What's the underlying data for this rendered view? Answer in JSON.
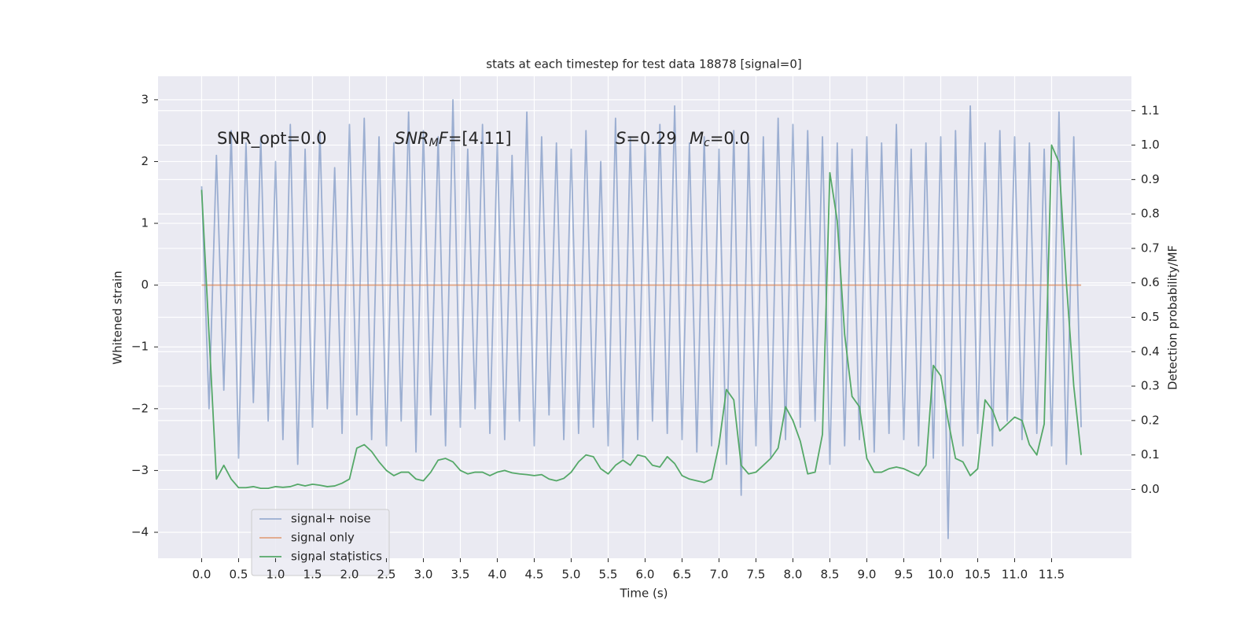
{
  "chart_data": {
    "type": "line",
    "title": "stats at each timestep for test data 18878 [signal=0]",
    "xlabel": "Time (s)",
    "ylabel": "Whitened strain",
    "y2label": "Detection probability/MF",
    "annotations": [
      [
        "SNR_opt=0.0"
      ],
      [
        "SNR",
        "M",
        "F",
        "=[4.11]"
      ],
      [
        "S",
        "=0.29"
      ],
      [
        "M",
        "c",
        "=0.0"
      ]
    ],
    "xlim": [
      -0.59,
      12.58
    ],
    "xticks": [
      {
        "value": 0,
        "label": "0.0"
      },
      0.5,
      {
        "value": 1,
        "label": "1.0"
      },
      1.5,
      {
        "value": 2,
        "label": "2.0"
      },
      2.5,
      {
        "value": 3,
        "label": "3.0"
      },
      3.5,
      {
        "value": 4,
        "label": "4.0"
      },
      4.5,
      {
        "value": 5,
        "label": "5.0"
      },
      5.5,
      {
        "value": 6,
        "label": "6.0"
      },
      6.5,
      {
        "value": 7,
        "label": "7.0"
      },
      7.5,
      {
        "value": 8,
        "label": "8.0"
      },
      8.5,
      {
        "value": 9,
        "label": "9.0"
      },
      9.5,
      {
        "value": 10,
        "label": "10.0"
      },
      10.5,
      {
        "value": 11,
        "label": "11.0"
      },
      11.5
    ],
    "ylim": [
      -4.42,
      3.38
    ],
    "yticks": [
      {
        "value": -4,
        "label": "−4"
      },
      {
        "value": -3,
        "label": "−3"
      },
      {
        "value": -2,
        "label": "−2"
      },
      {
        "value": -1,
        "label": "−1"
      },
      0,
      1,
      2,
      3
    ],
    "y2lim": [
      -0.2,
      1.2
    ],
    "y2ticks": [
      {
        "value": 0,
        "label": "0.0"
      },
      0.1,
      0.2,
      0.3,
      0.4,
      0.5,
      0.6,
      0.7,
      0.8,
      0.9,
      {
        "value": 1,
        "label": "1.0"
      },
      1.1
    ],
    "grid": true,
    "legend": "lower left",
    "series": [
      {
        "name": "signal+ noise",
        "color": "#4c72b0",
        "x": [
          0,
          0.1,
          0.2,
          0.3,
          0.4,
          0.5,
          0.6,
          0.7,
          0.8,
          0.9,
          1,
          1.1,
          1.2,
          1.3,
          1.4,
          1.5,
          1.6,
          1.7,
          1.8,
          1.9,
          2,
          2.1,
          2.2,
          2.3,
          2.4,
          2.5,
          2.6,
          2.7,
          2.8,
          2.9,
          3,
          3.1,
          3.2,
          3.3,
          3.4,
          3.5,
          3.6,
          3.7,
          3.8,
          3.9,
          4,
          4.1,
          4.2,
          4.3,
          4.4,
          4.5,
          4.6,
          4.7,
          4.8,
          4.9,
          5,
          5.1,
          5.2,
          5.3,
          5.4,
          5.5,
          5.6,
          5.7,
          5.8,
          5.9,
          6,
          6.1,
          6.2,
          6.3,
          6.4,
          6.5,
          6.6,
          6.7,
          6.8,
          6.9,
          7,
          7.1,
          7.2,
          7.3,
          7.4,
          7.5,
          7.6,
          7.7,
          7.8,
          7.9,
          8,
          8.1,
          8.2,
          8.3,
          8.4,
          8.5,
          8.6,
          8.7,
          8.8,
          8.9,
          9,
          9.1,
          9.2,
          9.3,
          9.4,
          9.5,
          9.6,
          9.7,
          9.8,
          9.9,
          10,
          10.1,
          10.2,
          10.3,
          10.4,
          10.5,
          10.6,
          10.7,
          10.8,
          10.9,
          11,
          11.1,
          11.2,
          11.3,
          11.4,
          11.5,
          11.6,
          11.7,
          11.8,
          11.9
        ],
        "values": [
          1.6,
          -2.0,
          2.1,
          -1.7,
          2.5,
          -2.8,
          2.3,
          -1.9,
          2.4,
          -2.2,
          2.0,
          -2.5,
          2.6,
          -2.9,
          2.2,
          -2.3,
          2.5,
          -2.0,
          1.9,
          -2.4,
          2.6,
          -2.1,
          2.7,
          -2.5,
          2.4,
          -2.6,
          2.3,
          -2.2,
          2.8,
          -2.7,
          2.5,
          -2.1,
          2.4,
          -2.6,
          3.0,
          -2.3,
          2.2,
          -2.0,
          2.6,
          -2.4,
          2.3,
          -2.5,
          2.1,
          -2.2,
          2.8,
          -2.6,
          2.4,
          -2.1,
          2.3,
          -2.5,
          2.2,
          -2.4,
          2.5,
          -2.3,
          2.0,
          -2.6,
          2.7,
          -2.8,
          2.4,
          -2.5,
          2.3,
          -2.2,
          2.6,
          -2.4,
          2.9,
          -2.5,
          2.3,
          -2.7,
          2.4,
          -2.6,
          2.2,
          -2.9,
          2.5,
          -3.4,
          2.3,
          -2.6,
          2.4,
          -2.8,
          2.7,
          -2.5,
          2.6,
          -2.3,
          2.5,
          -2.2,
          2.4,
          -2.9,
          2.3,
          -2.6,
          2.2,
          -2.5,
          2.4,
          -2.7,
          2.3,
          -2.4,
          2.6,
          -2.5,
          2.2,
          -2.6,
          2.3,
          -2.8,
          2.4,
          -4.1,
          2.5,
          -2.6,
          2.9,
          -2.4,
          2.3,
          -2.6,
          2.5,
          -2.2,
          2.4,
          -2.5,
          2.3,
          -2.4,
          2.2,
          -2.6,
          2.8,
          -2.9,
          2.4,
          -2.3
        ]
      },
      {
        "name": "signal only",
        "color": "#dd8452",
        "x": [
          0,
          11.9
        ],
        "values": [
          0,
          0
        ]
      },
      {
        "name": "signal statistics",
        "color": "#55a868",
        "axis": "y2",
        "x": [
          0,
          0.1,
          0.2,
          0.3,
          0.4,
          0.5,
          0.6,
          0.7,
          0.8,
          0.9,
          1,
          1.1,
          1.2,
          1.3,
          1.4,
          1.5,
          1.6,
          1.7,
          1.8,
          1.9,
          2,
          2.1,
          2.2,
          2.3,
          2.4,
          2.5,
          2.6,
          2.7,
          2.8,
          2.9,
          3,
          3.1,
          3.2,
          3.3,
          3.4,
          3.5,
          3.6,
          3.7,
          3.8,
          3.9,
          4,
          4.1,
          4.2,
          4.3,
          4.4,
          4.5,
          4.6,
          4.7,
          4.8,
          4.9,
          5,
          5.1,
          5.2,
          5.3,
          5.4,
          5.5,
          5.6,
          5.7,
          5.8,
          5.9,
          6,
          6.1,
          6.2,
          6.3,
          6.4,
          6.5,
          6.6,
          6.7,
          6.8,
          6.9,
          7,
          7.1,
          7.2,
          7.3,
          7.4,
          7.5,
          7.6,
          7.7,
          7.8,
          7.9,
          8,
          8.1,
          8.2,
          8.3,
          8.4,
          8.5,
          8.6,
          8.7,
          8.8,
          8.9,
          9,
          9.1,
          9.2,
          9.3,
          9.4,
          9.5,
          9.6,
          9.7,
          9.8,
          9.9,
          10,
          10.1,
          10.2,
          10.3,
          10.4,
          10.5,
          10.6,
          10.7,
          10.8,
          10.9,
          11,
          11.1,
          11.2,
          11.3,
          11.4,
          11.5,
          11.6,
          11.7,
          11.8,
          11.9
        ],
        "values": [
          0.87,
          0.45,
          0.03,
          0.07,
          0.03,
          0.005,
          0.005,
          0.008,
          0.003,
          0.003,
          0.008,
          0.006,
          0.008,
          0.015,
          0.01,
          0.015,
          0.012,
          0.008,
          0.01,
          0.018,
          0.03,
          0.12,
          0.13,
          0.11,
          0.08,
          0.055,
          0.04,
          0.05,
          0.05,
          0.03,
          0.025,
          0.05,
          0.085,
          0.09,
          0.08,
          0.055,
          0.045,
          0.05,
          0.05,
          0.04,
          0.05,
          0.055,
          0.048,
          0.045,
          0.043,
          0.04,
          0.043,
          0.03,
          0.025,
          0.032,
          0.05,
          0.08,
          0.1,
          0.095,
          0.06,
          0.045,
          0.07,
          0.085,
          0.07,
          0.1,
          0.095,
          0.07,
          0.065,
          0.095,
          0.075,
          0.04,
          0.03,
          0.025,
          0.02,
          0.03,
          0.13,
          0.29,
          0.26,
          0.07,
          0.045,
          0.05,
          0.07,
          0.09,
          0.12,
          0.24,
          0.2,
          0.14,
          0.045,
          0.05,
          0.16,
          0.92,
          0.78,
          0.45,
          0.27,
          0.24,
          0.09,
          0.05,
          0.05,
          0.06,
          0.065,
          0.06,
          0.05,
          0.04,
          0.07,
          0.36,
          0.33,
          0.2,
          0.09,
          0.08,
          0.04,
          0.06,
          0.26,
          0.23,
          0.17,
          0.19,
          0.21,
          0.2,
          0.13,
          0.1,
          0.19,
          1.0,
          0.95,
          0.6,
          0.3,
          0.1
        ]
      }
    ]
  }
}
